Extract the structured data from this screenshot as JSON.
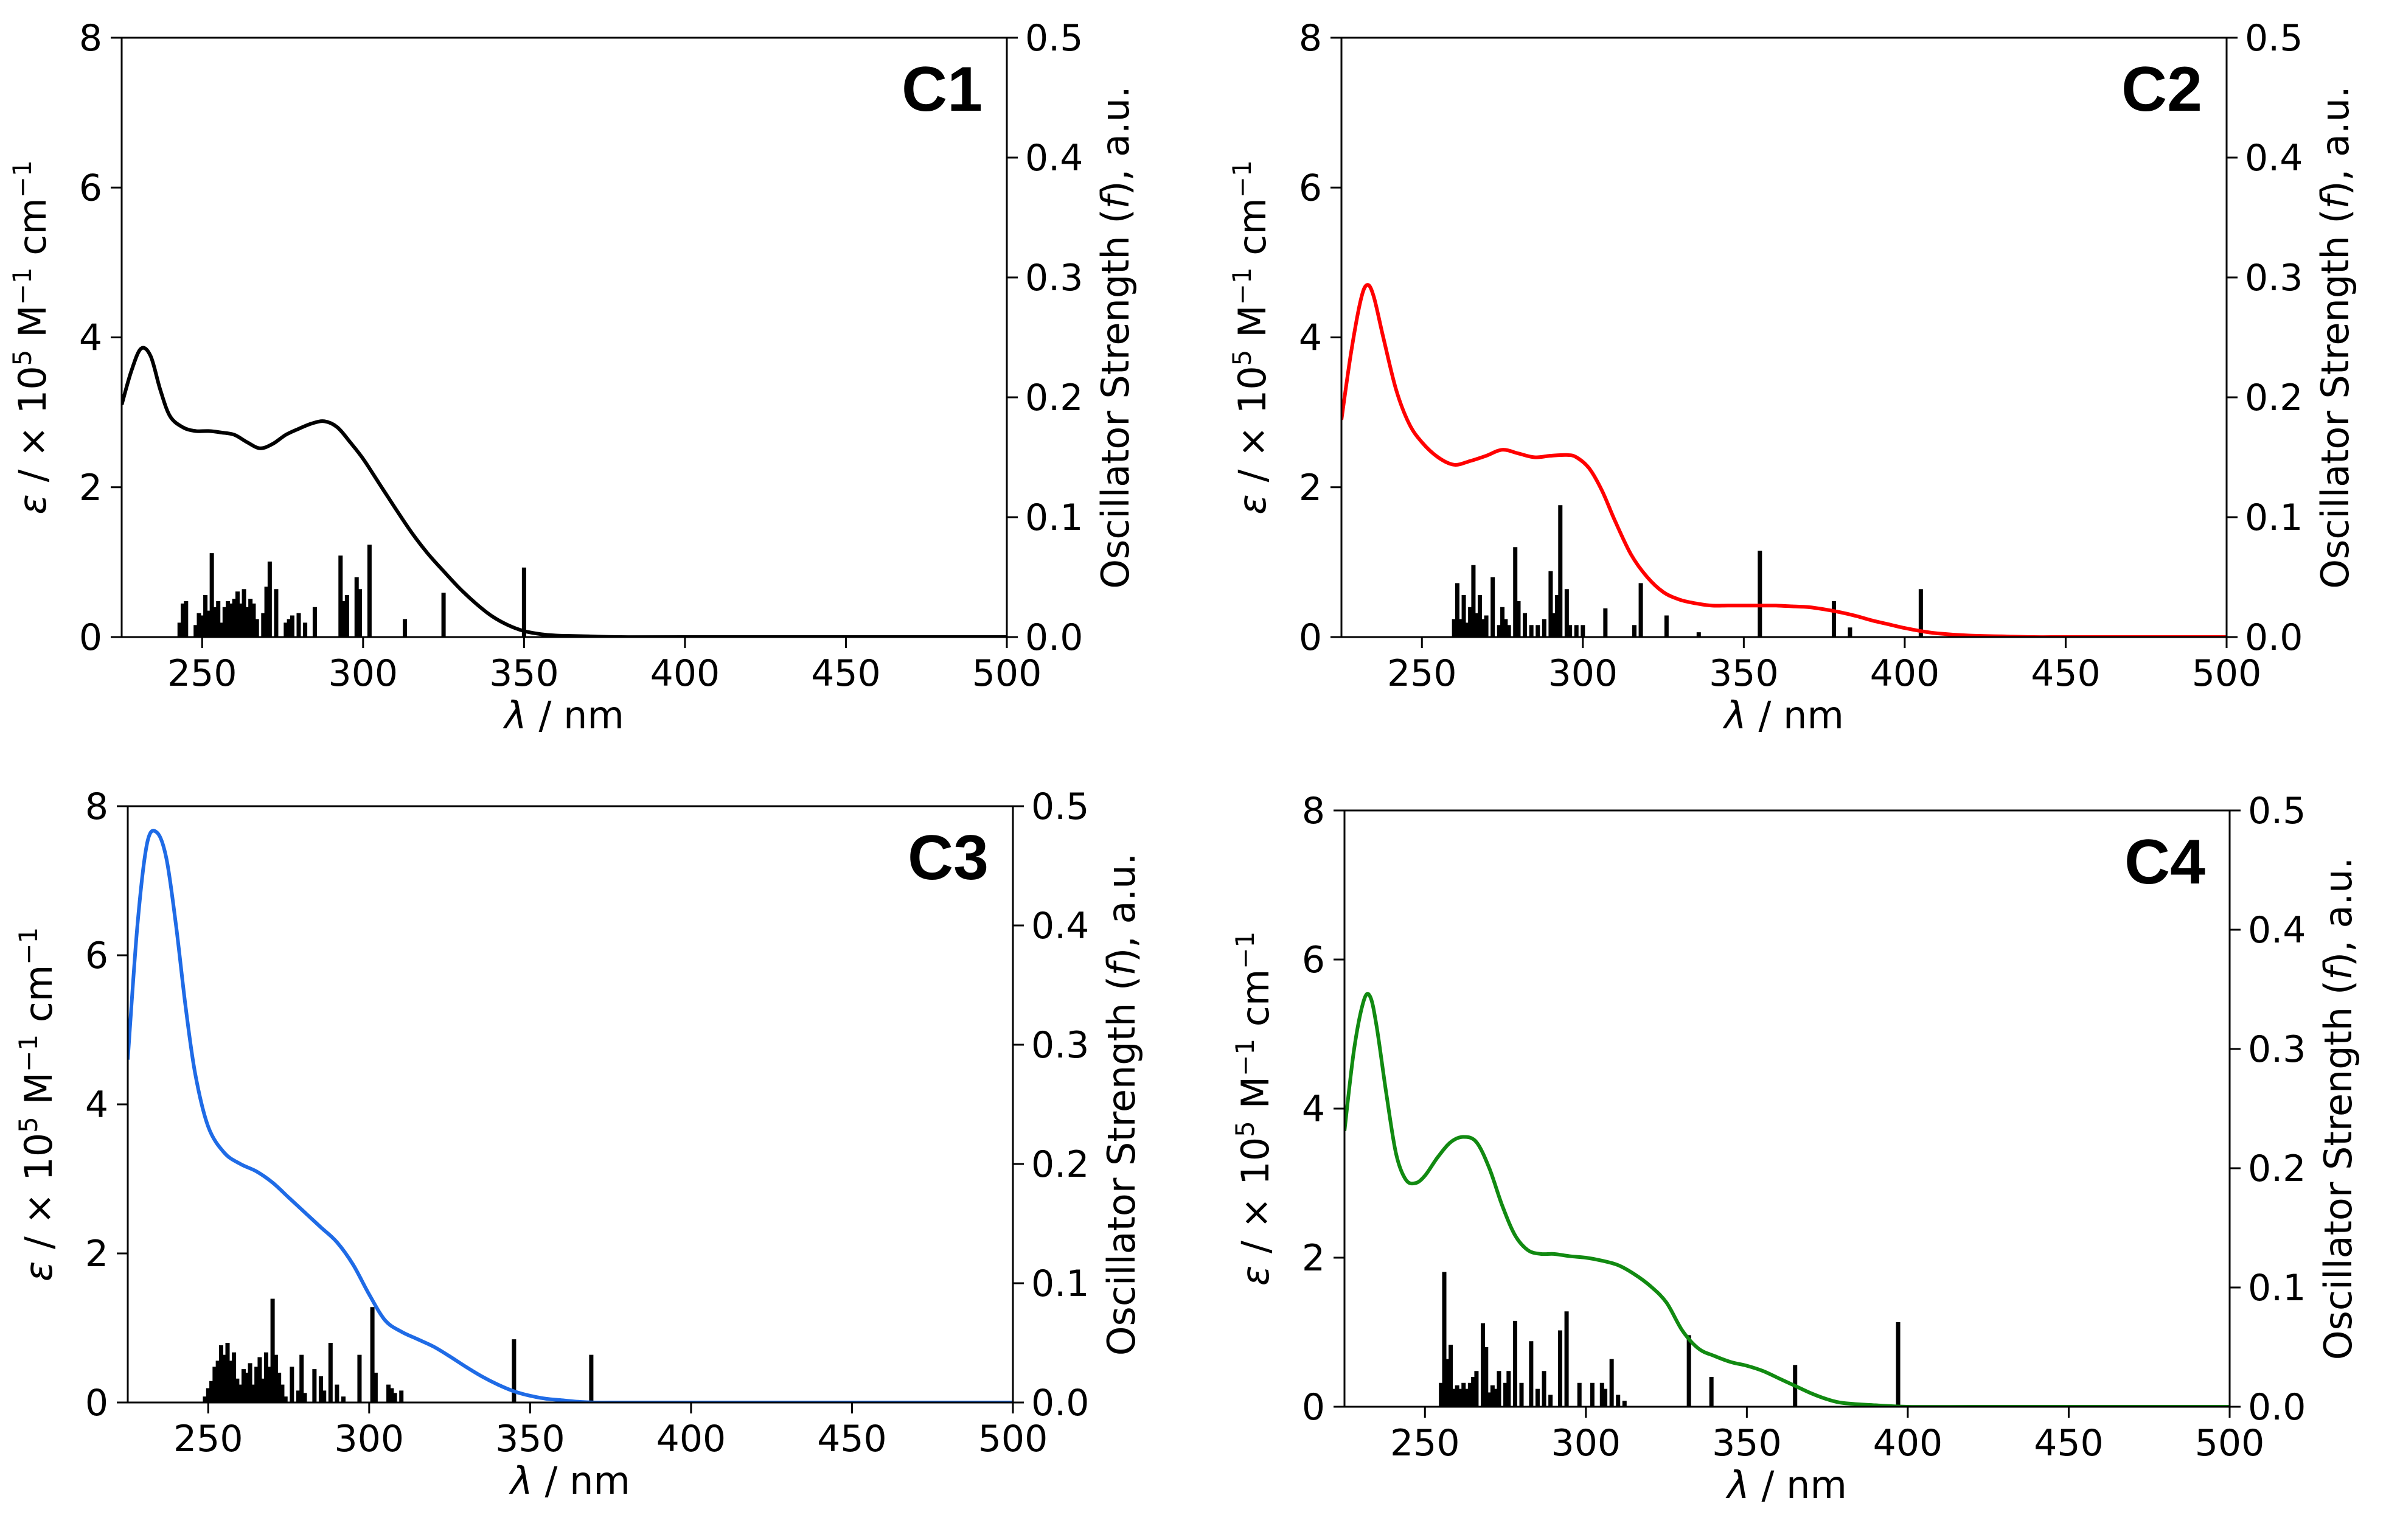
{
  "chart_data": [
    {
      "type": "line",
      "panel_label": "C1",
      "color": "#000000",
      "xlabel": "λ / nm",
      "ylabel_left": {
        "prefix": "ε / × 10",
        "sup1": "5",
        "mid": " M",
        "sup2": "−1",
        "end": " cm",
        "sup3": "−1"
      },
      "ylabel_right": {
        "prefix": "Oscillator Strength (",
        "italic": "f",
        "suffix": "), a.u."
      },
      "xlim": [
        225,
        500
      ],
      "ylim_left": [
        0,
        8
      ],
      "ylim_right": [
        0,
        0.5
      ],
      "xticks": [
        "250",
        "300",
        "350",
        "400",
        "450",
        "500"
      ],
      "yticks_left": [
        "0",
        "2",
        "4",
        "6",
        "8"
      ],
      "yticks_right": [
        "0.0",
        "0.1",
        "0.2",
        "0.3",
        "0.4",
        "0.5"
      ],
      "series": [
        {
          "name": "epsilon",
          "x": [
            225,
            228,
            231,
            234,
            237,
            240,
            244,
            248,
            252,
            256,
            260,
            264,
            268,
            272,
            276,
            280,
            284,
            288,
            292,
            296,
            300,
            305,
            310,
            315,
            320,
            325,
            330,
            335,
            340,
            345,
            350,
            355,
            360,
            370,
            380,
            400,
            450,
            500
          ],
          "values": [
            3.1,
            3.55,
            3.85,
            3.75,
            3.3,
            2.95,
            2.8,
            2.75,
            2.75,
            2.73,
            2.7,
            2.6,
            2.52,
            2.58,
            2.7,
            2.78,
            2.85,
            2.88,
            2.8,
            2.6,
            2.38,
            2.05,
            1.72,
            1.4,
            1.12,
            0.88,
            0.65,
            0.45,
            0.28,
            0.16,
            0.08,
            0.04,
            0.02,
            0.01,
            0.0,
            0.0,
            0.0,
            0.0
          ]
        },
        {
          "name": "oscillator_strength",
          "x": [
            243,
            244,
            245,
            248,
            249,
            250,
            251,
            252,
            253,
            254,
            255,
            256,
            257,
            258,
            259,
            260,
            261,
            262,
            263,
            264,
            265,
            266,
            267,
            269,
            270,
            271,
            273,
            276,
            277,
            278,
            280,
            282,
            285,
            293,
            294,
            295,
            298,
            299,
            302,
            313,
            325,
            350
          ],
          "values": [
            0.012,
            0.028,
            0.03,
            0.01,
            0.02,
            0.018,
            0.035,
            0.022,
            0.07,
            0.025,
            0.03,
            0.012,
            0.025,
            0.03,
            0.028,
            0.032,
            0.038,
            0.028,
            0.04,
            0.025,
            0.032,
            0.028,
            0.015,
            0.02,
            0.042,
            0.063,
            0.04,
            0.012,
            0.015,
            0.018,
            0.02,
            0.012,
            0.025,
            0.068,
            0.03,
            0.035,
            0.05,
            0.04,
            0.077,
            0.015,
            0.037,
            0.058
          ]
        }
      ]
    },
    {
      "type": "line",
      "panel_label": "C2",
      "color": "#ff0000",
      "xlabel": "λ / nm",
      "ylabel_left": {
        "prefix": "ε / × 10",
        "sup1": "5",
        "mid": " M",
        "sup2": "−1",
        "end": " cm",
        "sup3": "−1"
      },
      "ylabel_right": {
        "prefix": "Oscillator Strength (",
        "italic": "f",
        "suffix": "), a.u."
      },
      "xlim": [
        225,
        500
      ],
      "ylim_left": [
        0,
        8
      ],
      "ylim_right": [
        0,
        0.5
      ],
      "xticks": [
        "250",
        "300",
        "350",
        "400",
        "450",
        "500"
      ],
      "yticks_left": [
        "0",
        "2",
        "4",
        "6",
        "8"
      ],
      "yticks_right": [
        "0.0",
        "0.1",
        "0.2",
        "0.3",
        "0.4",
        "0.5"
      ],
      "series": [
        {
          "name": "epsilon",
          "x": [
            225,
            228,
            231,
            233,
            235,
            238,
            242,
            246,
            250,
            255,
            260,
            265,
            270,
            275,
            280,
            285,
            290,
            295,
            298,
            302,
            306,
            310,
            315,
            320,
            325,
            330,
            335,
            340,
            345,
            350,
            355,
            360,
            365,
            370,
            375,
            380,
            385,
            390,
            395,
            400,
            405,
            410,
            420,
            430,
            440,
            450,
            470,
            500
          ],
          "values": [
            2.9,
            3.8,
            4.5,
            4.7,
            4.55,
            4.0,
            3.3,
            2.85,
            2.6,
            2.4,
            2.3,
            2.35,
            2.42,
            2.5,
            2.45,
            2.4,
            2.42,
            2.43,
            2.4,
            2.25,
            1.95,
            1.55,
            1.1,
            0.8,
            0.6,
            0.5,
            0.45,
            0.42,
            0.42,
            0.42,
            0.42,
            0.42,
            0.41,
            0.4,
            0.37,
            0.33,
            0.28,
            0.22,
            0.17,
            0.12,
            0.08,
            0.05,
            0.02,
            0.01,
            0.0,
            0.0,
            0.0,
            0.0
          ]
        },
        {
          "name": "oscillator_strength",
          "x": [
            260,
            261,
            262,
            263,
            264,
            265,
            266,
            267,
            268,
            269,
            270,
            272,
            274,
            275,
            276,
            277,
            279,
            280,
            282,
            284,
            286,
            288,
            290,
            291,
            292,
            293,
            295,
            296,
            298,
            300,
            307,
            316,
            318,
            326,
            336,
            355,
            378,
            383,
            405
          ],
          "values": [
            0.015,
            0.045,
            0.015,
            0.035,
            0.012,
            0.025,
            0.06,
            0.02,
            0.035,
            0.015,
            0.018,
            0.05,
            0.01,
            0.025,
            0.015,
            0.01,
            0.075,
            0.03,
            0.02,
            0.01,
            0.01,
            0.015,
            0.055,
            0.02,
            0.035,
            0.11,
            0.04,
            0.01,
            0.01,
            0.01,
            0.024,
            0.01,
            0.045,
            0.018,
            0.004,
            0.072,
            0.03,
            0.008,
            0.04
          ]
        }
      ]
    },
    {
      "type": "line",
      "panel_label": "C3",
      "color": "#1f6be6",
      "xlabel": "λ / nm",
      "ylabel_left": {
        "prefix": "ε / × 10",
        "sup1": "5",
        "mid": " M",
        "sup2": "−1",
        "end": " cm",
        "sup3": "−1"
      },
      "ylabel_right": {
        "prefix": "Oscillator Strength (",
        "italic": "f",
        "suffix": "), a.u."
      },
      "xlim": [
        225,
        500
      ],
      "ylim_left": [
        0,
        8
      ],
      "ylim_right": [
        0,
        0.5
      ],
      "xticks": [
        "250",
        "300",
        "350",
        "400",
        "450",
        "500"
      ],
      "yticks_left": [
        "0",
        "2",
        "4",
        "6",
        "8"
      ],
      "yticks_right": [
        "0.0",
        "0.1",
        "0.2",
        "0.3",
        "0.4",
        "0.5"
      ],
      "series": [
        {
          "name": "epsilon",
          "x": [
            225,
            228,
            231,
            234,
            237,
            240,
            243,
            246,
            250,
            255,
            260,
            265,
            270,
            275,
            280,
            285,
            290,
            295,
            300,
            305,
            310,
            315,
            320,
            325,
            330,
            335,
            340,
            345,
            350,
            355,
            360,
            365,
            370,
            380,
            400,
            450,
            500
          ],
          "values": [
            4.6,
            6.4,
            7.5,
            7.65,
            7.3,
            6.4,
            5.3,
            4.4,
            3.7,
            3.35,
            3.2,
            3.1,
            2.95,
            2.75,
            2.55,
            2.35,
            2.15,
            1.85,
            1.45,
            1.1,
            0.95,
            0.85,
            0.75,
            0.62,
            0.48,
            0.35,
            0.24,
            0.15,
            0.09,
            0.05,
            0.03,
            0.01,
            0.0,
            0.0,
            0.0,
            0.0,
            0.0
          ]
        },
        {
          "name": "oscillator_strength",
          "x": [
            249,
            250,
            251,
            252,
            253,
            254,
            255,
            256,
            257,
            258,
            259,
            260,
            261,
            262,
            263,
            264,
            265,
            266,
            267,
            268,
            269,
            270,
            271,
            272,
            273,
            274,
            276,
            278,
            279,
            280,
            283,
            285,
            286,
            288,
            290,
            292,
            297,
            301,
            302,
            306,
            307,
            308,
            310,
            345,
            369
          ],
          "values": [
            0.005,
            0.012,
            0.018,
            0.03,
            0.035,
            0.048,
            0.04,
            0.05,
            0.035,
            0.042,
            0.02,
            0.015,
            0.028,
            0.025,
            0.033,
            0.015,
            0.03,
            0.038,
            0.02,
            0.042,
            0.03,
            0.087,
            0.04,
            0.025,
            0.015,
            0.005,
            0.03,
            0.01,
            0.04,
            0.008,
            0.028,
            0.022,
            0.01,
            0.05,
            0.015,
            0.005,
            0.04,
            0.08,
            0.025,
            0.015,
            0.012,
            0.008,
            0.01,
            0.053,
            0.04
          ]
        }
      ]
    },
    {
      "type": "line",
      "panel_label": "C4",
      "color": "#118a11",
      "xlabel": "λ / nm",
      "ylabel_left": {
        "prefix": "ε / × 10",
        "sup1": "5",
        "mid": " M",
        "sup2": "−1",
        "end": " cm",
        "sup3": "−1"
      },
      "ylabel_right": {
        "prefix": "Oscillator Strength (",
        "italic": "f",
        "suffix": "), a.u."
      },
      "xlim": [
        225,
        500
      ],
      "ylim_left": [
        0,
        8
      ],
      "ylim_right": [
        0,
        0.5
      ],
      "xticks": [
        "250",
        "300",
        "350",
        "400",
        "450",
        "500"
      ],
      "yticks_left": [
        "0",
        "2",
        "4",
        "6",
        "8"
      ],
      "yticks_right": [
        "0.0",
        "0.1",
        "0.2",
        "0.3",
        "0.4",
        "0.5"
      ],
      "series": [
        {
          "name": "epsilon",
          "x": [
            225,
            228,
            231,
            233,
            235,
            238,
            241,
            244,
            247,
            250,
            254,
            258,
            262,
            266,
            270,
            274,
            278,
            282,
            286,
            290,
            295,
            300,
            305,
            310,
            315,
            320,
            325,
            330,
            335,
            340,
            345,
            350,
            355,
            360,
            365,
            370,
            375,
            380,
            390,
            400,
            420,
            450,
            500
          ],
          "values": [
            3.7,
            4.8,
            5.45,
            5.5,
            5.1,
            4.2,
            3.4,
            3.05,
            3.0,
            3.1,
            3.35,
            3.55,
            3.62,
            3.55,
            3.2,
            2.7,
            2.3,
            2.1,
            2.05,
            2.05,
            2.02,
            2.0,
            1.96,
            1.9,
            1.78,
            1.62,
            1.4,
            1.02,
            0.78,
            0.68,
            0.6,
            0.55,
            0.48,
            0.38,
            0.28,
            0.18,
            0.1,
            0.05,
            0.02,
            0.0,
            0.0,
            0.0,
            0.0
          ]
        },
        {
          "name": "oscillator_strength",
          "x": [
            255,
            256,
            257,
            258,
            259,
            260,
            261,
            262,
            263,
            264,
            265,
            266,
            268,
            269,
            270,
            271,
            272,
            273,
            275,
            276,
            278,
            280,
            283,
            285,
            287,
            289,
            292,
            294,
            298,
            302,
            305,
            306,
            308,
            310,
            312,
            332,
            339,
            365,
            397
          ],
          "values": [
            0.02,
            0.113,
            0.04,
            0.052,
            0.015,
            0.018,
            0.015,
            0.02,
            0.015,
            0.02,
            0.025,
            0.03,
            0.07,
            0.05,
            0.012,
            0.018,
            0.015,
            0.03,
            0.02,
            0.03,
            0.072,
            0.02,
            0.055,
            0.015,
            0.03,
            0.01,
            0.064,
            0.08,
            0.02,
            0.02,
            0.02,
            0.015,
            0.04,
            0.01,
            0.005,
            0.06,
            0.025,
            0.035,
            0.071
          ]
        }
      ]
    }
  ]
}
